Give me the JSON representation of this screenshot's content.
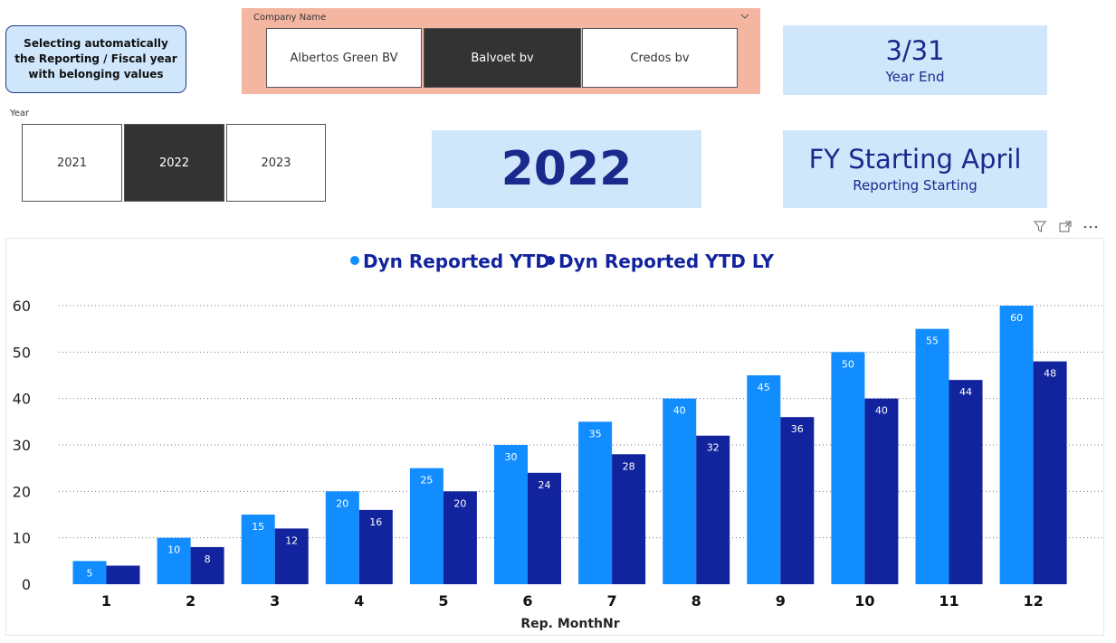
{
  "note": {
    "text": "Selecting automatically the Reporting / Fiscal year with belonging values"
  },
  "company_slicer": {
    "title": "Company Name",
    "options": [
      "Albertos Green BV",
      "Balvoet bv",
      "Credos bv"
    ],
    "selected_index": 1
  },
  "year_slicer": {
    "title": "Year",
    "options": [
      "2021",
      "2022",
      "2023"
    ],
    "selected_index": 1
  },
  "cards": {
    "year_end": {
      "value": "3/31",
      "label": "Year End"
    },
    "selected_year": {
      "value": "2022"
    },
    "fy_start": {
      "value": "FY Starting April",
      "label": "Reporting Starting"
    }
  },
  "toolbar": {
    "icons": [
      "filter-icon",
      "focus-mode-icon",
      "more-options-icon"
    ]
  },
  "colors": {
    "series1": "#118dff",
    "series2": "#12239e",
    "card_bg": "#cfe6fb",
    "card_text": "#1a2a8c",
    "slicer_bg": "#f4b6a1",
    "selected_bg": "#333333"
  },
  "chart_data": {
    "type": "bar",
    "categories": [
      "1",
      "2",
      "3",
      "4",
      "5",
      "6",
      "7",
      "8",
      "9",
      "10",
      "11",
      "12"
    ],
    "series": [
      {
        "name": "Dyn Reported YTD",
        "values": [
          5,
          10,
          15,
          20,
          25,
          30,
          35,
          40,
          45,
          50,
          55,
          60
        ]
      },
      {
        "name": "Dyn Reported YTD LY",
        "values": [
          4,
          8,
          12,
          16,
          20,
          24,
          28,
          32,
          36,
          40,
          44,
          48
        ]
      }
    ],
    "data_labels_shown": [
      5,
      10,
      15,
      20,
      25,
      30,
      35,
      40,
      45,
      50,
      55,
      60,
      null,
      8,
      12,
      16,
      20,
      24,
      28,
      32,
      36,
      40,
      44,
      48
    ],
    "xlabel": "Rep. MonthNr",
    "ylabel": "",
    "ylim": [
      0,
      60
    ],
    "yticks": [
      0,
      10,
      20,
      30,
      40,
      50,
      60
    ],
    "grid": true,
    "legend_position": "top-center"
  }
}
